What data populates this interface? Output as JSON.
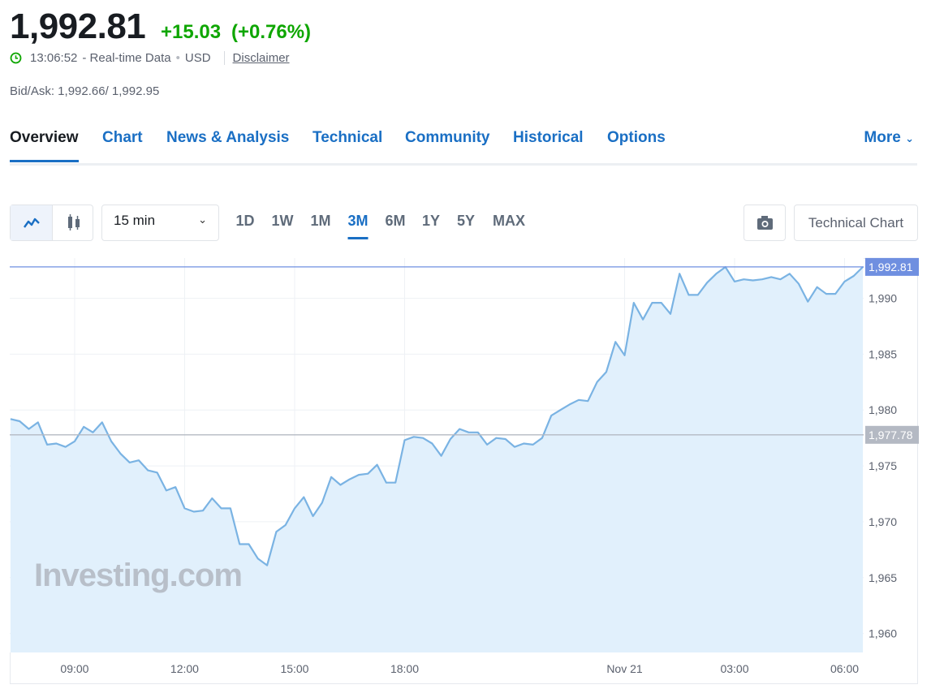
{
  "quote": {
    "price": "1,992.81",
    "change": "+15.03",
    "change_pct": "(+0.76%)",
    "time": "13:06:52",
    "source": "- Real-time Data",
    "currency": "USD",
    "disclaimer": "Disclaimer",
    "bid_ask": "Bid/Ask: 1,992.66/ 1,992.95"
  },
  "tabs": [
    "Overview",
    "Chart",
    "News & Analysis",
    "Technical",
    "Community",
    "Historical",
    "Options"
  ],
  "active_tab": "Overview",
  "more": "More",
  "toolbar": {
    "interval": "15 min",
    "ranges": [
      "1D",
      "1W",
      "1M",
      "3M",
      "6M",
      "1Y",
      "5Y",
      "MAX"
    ],
    "active_range": "3M",
    "technical_chart": "Technical Chart"
  },
  "chart_data": {
    "type": "area",
    "watermark": "Investing.com",
    "line_color": "#7ab3e3",
    "fill_color": "#e1f0fc",
    "grid": true,
    "x": [
      7.25,
      7.5,
      7.75,
      8,
      8.25,
      8.5,
      8.75,
      9,
      9.25,
      9.5,
      9.75,
      10,
      10.25,
      10.5,
      10.75,
      11,
      11.25,
      11.5,
      11.75,
      12,
      12.25,
      12.5,
      12.75,
      13,
      13.25,
      13.5,
      13.75,
      14,
      14.25,
      14.5,
      14.75,
      15,
      15.25,
      15.5,
      15.75,
      16,
      16.25,
      16.5,
      16.75,
      17,
      17.25,
      17.5,
      17.75,
      18,
      18.25,
      18.5,
      18.75,
      19,
      19.25,
      19.5,
      19.75,
      20,
      20.25,
      20.5,
      20.75,
      21,
      21.25,
      21.5,
      21.75,
      22,
      22.25,
      22.5,
      22.75,
      23,
      23.25,
      23.5,
      23.75,
      24,
      24.25,
      24.5,
      24.75,
      25,
      25.25,
      25.5,
      25.75,
      26,
      26.25,
      26.5,
      26.75,
      27,
      27.25,
      27.5,
      27.75,
      28,
      28.25,
      28.5,
      28.75,
      29,
      29.25,
      29.5,
      29.75,
      30,
      30.25,
      30.5
    ],
    "values": [
      1979.2,
      1979.0,
      1978.3,
      1978.9,
      1976.9,
      1977.0,
      1976.7,
      1977.2,
      1978.5,
      1978.0,
      1978.9,
      1977.2,
      1976.1,
      1975.3,
      1975.5,
      1974.6,
      1974.4,
      1972.8,
      1973.1,
      1971.2,
      1970.9,
      1971.0,
      1972.1,
      1971.2,
      1971.2,
      1968.0,
      1968.0,
      1966.7,
      1966.1,
      1969.1,
      1969.7,
      1971.2,
      1972.2,
      1970.5,
      1971.7,
      1974.0,
      1973.3,
      1973.8,
      1974.2,
      1974.3,
      1975.1,
      1973.5,
      1973.5,
      1977.3,
      1977.6,
      1977.5,
      1977.0,
      1975.9,
      1977.4,
      1978.3,
      1978.0,
      1978.0,
      1976.9,
      1977.5,
      1977.4,
      1976.7,
      1977.0,
      1976.9,
      1977.5,
      1979.5,
      1980.0,
      1980.5,
      1980.9,
      1980.8,
      1982.5,
      1983.4,
      1986.1,
      1984.9,
      1989.6,
      1988.1,
      1989.6,
      1989.6,
      1988.6,
      1992.2,
      1990.3,
      1990.3,
      1991.4,
      1992.2,
      1992.8,
      1991.5,
      1991.7,
      1991.6,
      1991.7,
      1991.9,
      1991.7,
      1992.2,
      1991.3,
      1989.7,
      1991.0,
      1990.4,
      1990.4,
      1991.5,
      1992.0,
      1992.81
    ],
    "xlim": [
      7.23,
      30.52
    ],
    "xticks": [
      {
        "value": 9,
        "label": "09:00"
      },
      {
        "value": 12,
        "label": "12:00"
      },
      {
        "value": 15,
        "label": "15:00"
      },
      {
        "value": 18,
        "label": "18:00"
      },
      {
        "value": 24,
        "label": "Nov 21"
      },
      {
        "value": 27,
        "label": "03:00"
      },
      {
        "value": 30,
        "label": "06:00"
      }
    ],
    "ylim": [
      1958.3,
      1993.6
    ],
    "yticks": [
      {
        "value": 1960,
        "label": "1,960"
      },
      {
        "value": 1965,
        "label": "1,965"
      },
      {
        "value": 1970,
        "label": "1,970"
      },
      {
        "value": 1975,
        "label": "1,975"
      },
      {
        "value": 1980,
        "label": "1,980"
      },
      {
        "value": 1985,
        "label": "1,985"
      },
      {
        "value": 1990,
        "label": "1,990"
      }
    ],
    "reference_lines": [
      {
        "value": 1992.81,
        "label": "1,992.81",
        "color": "#6f8fe0"
      },
      {
        "value": 1977.78,
        "label": "1,977.78",
        "color": "#b4b9c3"
      }
    ]
  }
}
